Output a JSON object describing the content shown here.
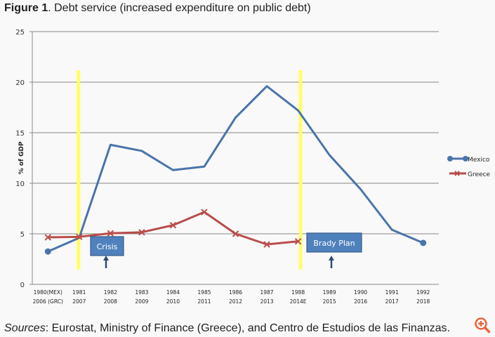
{
  "figure": {
    "label": "Figure 1",
    "caption": ". Debt service (increased expenditure on public debt)"
  },
  "footer": {
    "sources_label": "Sources",
    "sources_text": ": Eurostat, Ministry of Finance (Greece), and Centro de Estudios de las Finanzas."
  },
  "zoom_icon": "zoom-in-icon",
  "colors": {
    "mexico": "#4a74ab",
    "greece": "#b84d4a",
    "highlight": "#ffff66",
    "annotation_box": "#4f81bd",
    "annotation_border": "#385d8a",
    "zoom": "#e8653a"
  },
  "chart_data": {
    "type": "line",
    "title": "Debt service (increased expenditure on public debt)",
    "xlabel": "",
    "ylabel": "% of GDP",
    "ylim": [
      0,
      25
    ],
    "yticks": [
      0,
      5,
      10,
      15,
      20,
      25
    ],
    "grid": true,
    "legend_position": "right",
    "categories": [
      [
        "1980(MEX)",
        "2006 (GRC)"
      ],
      [
        "1981",
        "2007"
      ],
      [
        "1982",
        "2008"
      ],
      [
        "1983",
        "2009"
      ],
      [
        "1984",
        "2010"
      ],
      [
        "1985",
        "2011"
      ],
      [
        "1986",
        "2012"
      ],
      [
        "1987",
        "2013"
      ],
      [
        "1988",
        "2014E"
      ],
      [
        "1989",
        "2015"
      ],
      [
        "1990",
        "2016"
      ],
      [
        "1991",
        "2017"
      ],
      [
        "1992",
        "2018"
      ]
    ],
    "series": [
      {
        "name": "Mexico",
        "marker": "circle",
        "values": [
          3.25,
          4.6,
          13.8,
          13.2,
          11.3,
          11.65,
          16.5,
          19.6,
          17.2,
          12.8,
          9.4,
          5.4,
          4.1
        ],
        "show_markers_at": [
          0,
          12
        ]
      },
      {
        "name": "Greece",
        "marker": "x",
        "values": [
          4.65,
          4.7,
          5.05,
          5.15,
          5.85,
          7.15,
          5.0,
          3.95,
          4.25,
          null,
          null,
          null,
          null
        ]
      }
    ],
    "highlights": [
      {
        "position": 1.0,
        "label": "Crisis"
      },
      {
        "position": 8.1,
        "label": "Brady Plan"
      }
    ],
    "annotations": [
      {
        "text": "Crisis",
        "at_category": 2
      },
      {
        "text": "Brady Plan",
        "at_category": 9
      }
    ]
  }
}
